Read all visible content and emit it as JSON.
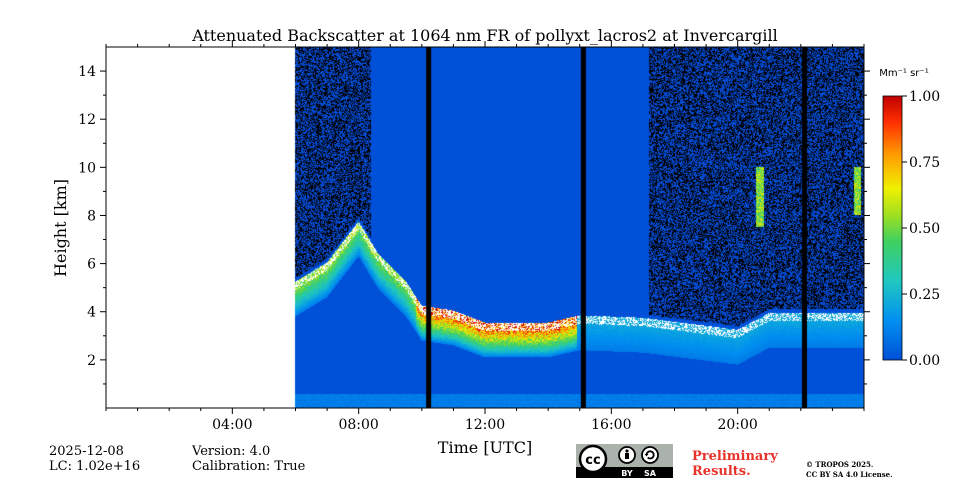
{
  "chart_data": {
    "type": "heatmap",
    "title": "Attenuated Backscatter at 1064 nm FR of pollyxt_lacros2 at Invercargill",
    "xlabel": "Time [UTC]",
    "ylabel": "Height [km]",
    "x_range_hours": [
      0,
      24
    ],
    "ylim_km": [
      0,
      15
    ],
    "x_ticks": [
      "04:00",
      "08:00",
      "12:00",
      "16:00",
      "20:00"
    ],
    "y_ticks": [
      "2",
      "4",
      "6",
      "8",
      "10",
      "12",
      "14"
    ],
    "data_start_hour": 6.0,
    "gap_hours": [
      10.2,
      15.1,
      22.1
    ],
    "high_noise_periods": [
      [
        6.0,
        8.4
      ],
      [
        17.2,
        24.0
      ]
    ],
    "cloud_layer_km": [
      {
        "t": 6.0,
        "h": 5.0
      },
      {
        "t": 7.0,
        "h": 5.8
      },
      {
        "t": 8.0,
        "h": 7.5
      },
      {
        "t": 8.6,
        "h": 6.2
      },
      {
        "t": 9.5,
        "h": 5.0
      },
      {
        "t": 10.0,
        "h": 4.0
      },
      {
        "t": 11.0,
        "h": 3.8
      },
      {
        "t": 12.0,
        "h": 3.3
      },
      {
        "t": 13.0,
        "h": 3.3
      },
      {
        "t": 14.0,
        "h": 3.3
      },
      {
        "t": 15.0,
        "h": 3.6
      },
      {
        "t": 17.0,
        "h": 3.5
      },
      {
        "t": 20.0,
        "h": 3.0
      },
      {
        "t": 21.0,
        "h": 3.7
      },
      {
        "t": 23.6,
        "h": 3.7
      }
    ],
    "high_cloud_features": [
      {
        "t": 20.7,
        "h_range": [
          7.5,
          10.0
        ]
      },
      {
        "t": 23.8,
        "h_range": [
          8.0,
          10.0
        ]
      }
    ],
    "colorbar": {
      "unit": "Mm⁻¹ sr⁻¹",
      "range": [
        0.0,
        1.0
      ],
      "ticks": [
        "0.00",
        "0.25",
        "0.50",
        "0.75",
        "1.00"
      ],
      "colormap": "jet"
    }
  },
  "meta": {
    "date": "2025-12-08",
    "lc": "LC: 1.02e+16",
    "version": "Version: 4.0",
    "calibration": "Calibration: True"
  },
  "license": {
    "cc": "cc",
    "by": "BY",
    "sa": "SA",
    "preliminary_line1": "Preliminary",
    "preliminary_line2": "Results.",
    "copyright_line1": "© TROPOS 2025.",
    "copyright_line2": "CC BY SA 4.0 License."
  }
}
